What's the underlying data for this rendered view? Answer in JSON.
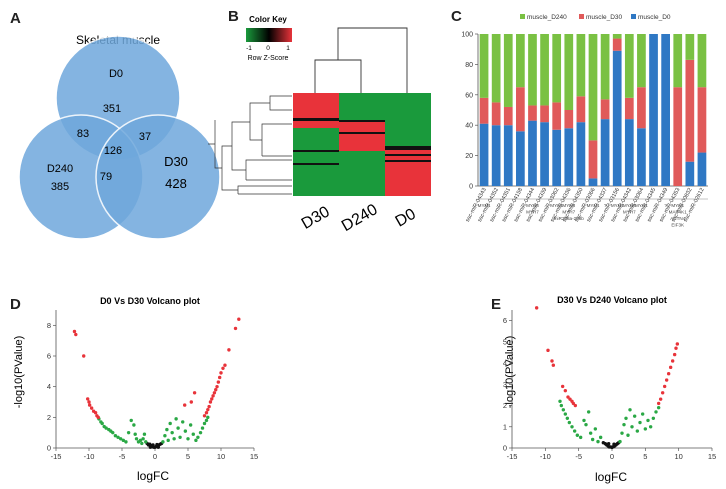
{
  "panel_labels": {
    "a": "A",
    "b": "B",
    "c": "C",
    "d": "D",
    "e": "E"
  },
  "venn": {
    "title": "Skeletal muscle",
    "sets": [
      "D0",
      "D240",
      "D30"
    ],
    "regions": {
      "d0_only": "351",
      "d240_only": "385",
      "d30_only": "428",
      "d0_d240": "83",
      "d0_d30": "37",
      "d240_d30": "79",
      "all": "126"
    },
    "colors": {
      "fill": "#6fa8dc",
      "overlap": "#3f7fc4"
    }
  },
  "heatmap": {
    "color_key_title": "Color Key",
    "color_key_caption": "Row Z-Score",
    "scale_ticks": [
      "-1",
      "0",
      "1"
    ],
    "columns": [
      "D30",
      "D240",
      "D0"
    ],
    "colors": {
      "low": "#1a9a3c",
      "mid": "#000000",
      "high": "#e8333a"
    }
  },
  "chart_data": [
    {
      "panel": "C",
      "type": "bar",
      "stacked": true,
      "legend": [
        "muscle_D240",
        "muscle_D30",
        "muscle_D0"
      ],
      "colors": [
        "#7ac143",
        "#e05a5a",
        "#2f78c4"
      ],
      "ylim": [
        0,
        100
      ],
      "yticks": [
        "0",
        "20",
        "40",
        "60",
        "80",
        "100"
      ],
      "categories": [
        "ssc-miR-04343",
        "ssc-miR-04352",
        "ssc-miR-04351",
        "ssc-miR-04158",
        "ssc-miR-04344",
        "ssc-miR-04339",
        "ssc-miR-03062",
        "ssc-miR-04336",
        "ssc-miR-04350",
        "ssc-miR-03066",
        "ssc-miR-04337",
        "ssc-miR-03156",
        "ssc-miR-04342",
        "ssc-miR-03064",
        "ssc-miR-04345",
        "ssc-miR-04349",
        "ssc-miR-04353",
        "ssc-miR-00832",
        "ssc-miR-02612"
      ],
      "series": [
        {
          "name": "muscle_D0",
          "values": [
            41,
            40,
            40,
            36,
            43,
            42,
            37,
            38,
            42,
            5,
            44,
            89,
            44,
            38,
            100,
            100,
            0,
            16,
            22
          ]
        },
        {
          "name": "muscle_D30",
          "values": [
            17,
            15,
            12,
            29,
            10,
            11,
            18,
            12,
            17,
            25,
            13,
            8,
            14,
            27,
            0,
            0,
            65,
            67,
            43
          ]
        },
        {
          "name": "muscle_D240",
          "values": [
            42,
            45,
            48,
            35,
            47,
            47,
            45,
            50,
            41,
            70,
            43,
            3,
            42,
            35,
            0,
            0,
            35,
            17,
            35
          ]
        }
      ],
      "targets": [
        {
          "col": 0,
          "lines": [
            "MYH1"
          ]
        },
        {
          "col": 4,
          "lines": [
            "MYH6",
            "MYH7"
          ]
        },
        {
          "col": 6,
          "lines": [
            "MYH1"
          ]
        },
        {
          "col": 7,
          "lines": [
            "MYH6",
            "MYH7",
            "miR208a-208b"
          ]
        },
        {
          "col": 9,
          "lines": [
            "MYH1"
          ]
        },
        {
          "col": 10,
          "lines": [
            "?"
          ]
        },
        {
          "col": 11,
          "lines": [
            "MYH1"
          ]
        },
        {
          "col": 12,
          "lines": [
            "MYH6",
            "MYH7"
          ]
        },
        {
          "col": 13,
          "lines": [
            "MYH1"
          ]
        },
        {
          "col": 15,
          "lines": [
            "?"
          ]
        },
        {
          "col": 16,
          "lines": [
            "MYH1",
            "MAP4K1",
            "ACTN4",
            "EIF3K"
          ]
        }
      ]
    },
    {
      "panel": "D",
      "type": "scatter",
      "title": "D0 Vs D30 Volcano plot",
      "xlabel": "logFC",
      "ylabel": "-log10(PValue)",
      "xlim": [
        -15,
        15
      ],
      "ylim": [
        0,
        9
      ],
      "xticks": [
        -15,
        -10,
        -5,
        0,
        5,
        10,
        15
      ],
      "yticks": [
        0,
        2,
        4,
        6,
        8
      ],
      "colors": {
        "up": "#e8333a",
        "mid": "#2aa845",
        "ns": "#111111"
      },
      "points_red": [
        [
          -12.2,
          7.6
        ],
        [
          -12.0,
          7.4
        ],
        [
          -10.8,
          6.0
        ],
        [
          -10.2,
          3.2
        ],
        [
          -10.0,
          3.0
        ],
        [
          -9.9,
          2.8
        ],
        [
          -9.6,
          2.6
        ],
        [
          -9.3,
          2.4
        ],
        [
          -9.0,
          2.3
        ],
        [
          -8.8,
          2.1
        ],
        [
          -8.6,
          2.0
        ],
        [
          4.5,
          2.8
        ],
        [
          5.5,
          3.0
        ],
        [
          6.0,
          3.6
        ],
        [
          7.5,
          2.1
        ],
        [
          7.8,
          2.3
        ],
        [
          8.0,
          2.5
        ],
        [
          8.2,
          2.7
        ],
        [
          8.4,
          3.0
        ],
        [
          8.6,
          3.2
        ],
        [
          8.8,
          3.4
        ],
        [
          9.0,
          3.6
        ],
        [
          9.2,
          3.8
        ],
        [
          9.4,
          4.0
        ],
        [
          9.6,
          4.3
        ],
        [
          9.8,
          4.6
        ],
        [
          10.0,
          4.9
        ],
        [
          10.3,
          5.2
        ],
        [
          10.6,
          5.4
        ],
        [
          11.2,
          6.4
        ],
        [
          12.2,
          7.8
        ],
        [
          12.7,
          8.4
        ]
      ],
      "points_green": [
        [
          -8.5,
          1.9
        ],
        [
          -8.2,
          1.7
        ],
        [
          -8.0,
          1.6
        ],
        [
          -7.7,
          1.4
        ],
        [
          -7.4,
          1.3
        ],
        [
          -7.0,
          1.2
        ],
        [
          -6.7,
          1.1
        ],
        [
          -6.4,
          1.0
        ],
        [
          -6.0,
          0.8
        ],
        [
          -5.6,
          0.7
        ],
        [
          -5.2,
          0.6
        ],
        [
          -4.8,
          0.5
        ],
        [
          -4.4,
          0.4
        ],
        [
          -4.0,
          1.0
        ],
        [
          -3.6,
          1.8
        ],
        [
          -3.2,
          1.5
        ],
        [
          -3.0,
          0.9
        ],
        [
          -2.8,
          0.6
        ],
        [
          -2.5,
          0.4
        ],
        [
          -2.2,
          0.5
        ],
        [
          -2.0,
          0.3
        ],
        [
          -1.8,
          0.6
        ],
        [
          -1.6,
          0.9
        ],
        [
          -1.4,
          0.4
        ],
        [
          1.2,
          0.4
        ],
        [
          1.5,
          0.8
        ],
        [
          1.8,
          1.2
        ],
        [
          2.0,
          0.5
        ],
        [
          2.3,
          1.6
        ],
        [
          2.6,
          1.0
        ],
        [
          2.9,
          0.6
        ],
        [
          3.2,
          1.9
        ],
        [
          3.5,
          1.3
        ],
        [
          3.8,
          0.7
        ],
        [
          4.2,
          1.7
        ],
        [
          4.6,
          1.1
        ],
        [
          5.0,
          0.6
        ],
        [
          5.4,
          1.5
        ],
        [
          5.8,
          0.9
        ],
        [
          6.2,
          0.5
        ],
        [
          6.5,
          0.7
        ],
        [
          6.9,
          1.0
        ],
        [
          7.2,
          1.3
        ],
        [
          7.5,
          1.6
        ],
        [
          7.8,
          1.8
        ],
        [
          8.0,
          2.0
        ]
      ],
      "points_black": [
        [
          -1.2,
          0.3
        ],
        [
          -1.0,
          0.2
        ],
        [
          -0.8,
          0.25
        ],
        [
          -0.6,
          0.15
        ],
        [
          -0.4,
          0.1
        ],
        [
          -0.2,
          0.05
        ],
        [
          0.0,
          0.05
        ],
        [
          0.2,
          0.1
        ],
        [
          0.4,
          0.15
        ],
        [
          0.6,
          0.2
        ],
        [
          0.8,
          0.25
        ],
        [
          1.0,
          0.3
        ],
        [
          -0.7,
          0.05
        ],
        [
          0.5,
          0.05
        ],
        [
          -0.3,
          0.2
        ],
        [
          0.3,
          0.22
        ]
      ]
    },
    {
      "panel": "E",
      "type": "scatter",
      "title": "D30 Vs D240 Volcano plot",
      "xlabel": "logFC",
      "ylabel": "-log10(PValue)",
      "xlim": [
        -15,
        15
      ],
      "ylim": [
        0,
        6.5
      ],
      "xticks": [
        -15,
        -10,
        -5,
        0,
        5,
        10,
        15
      ],
      "yticks": [
        0,
        1,
        2,
        3,
        4,
        5,
        6
      ],
      "colors": {
        "up": "#e8333a",
        "mid": "#2aa845",
        "ns": "#111111"
      },
      "points_red": [
        [
          -11.3,
          6.6
        ],
        [
          -9.6,
          4.6
        ],
        [
          -9.0,
          4.1
        ],
        [
          -8.8,
          3.9
        ],
        [
          -7.4,
          2.9
        ],
        [
          -7.0,
          2.7
        ],
        [
          -6.6,
          2.4
        ],
        [
          -6.3,
          2.3
        ],
        [
          -6.0,
          2.2
        ],
        [
          -5.8,
          2.1
        ],
        [
          -5.5,
          2.0
        ],
        [
          7.0,
          2.1
        ],
        [
          7.3,
          2.3
        ],
        [
          7.6,
          2.6
        ],
        [
          7.9,
          2.9
        ],
        [
          8.2,
          3.2
        ],
        [
          8.5,
          3.5
        ],
        [
          8.8,
          3.8
        ],
        [
          9.1,
          4.1
        ],
        [
          9.4,
          4.4
        ],
        [
          9.6,
          4.7
        ],
        [
          9.8,
          4.9
        ]
      ],
      "points_green": [
        [
          -7.8,
          2.2
        ],
        [
          -7.6,
          2.0
        ],
        [
          -7.3,
          1.8
        ],
        [
          -7.0,
          1.6
        ],
        [
          -6.7,
          1.4
        ],
        [
          -6.4,
          1.2
        ],
        [
          -6.0,
          1.0
        ],
        [
          -5.6,
          0.8
        ],
        [
          -5.2,
          0.6
        ],
        [
          -4.7,
          0.5
        ],
        [
          -4.2,
          1.3
        ],
        [
          -3.9,
          1.1
        ],
        [
          -3.5,
          1.7
        ],
        [
          -3.2,
          0.7
        ],
        [
          -2.9,
          0.4
        ],
        [
          -2.5,
          0.9
        ],
        [
          -2.1,
          0.3
        ],
        [
          -1.7,
          0.5
        ],
        [
          1.2,
          0.3
        ],
        [
          1.5,
          0.7
        ],
        [
          1.8,
          1.1
        ],
        [
          2.1,
          1.4
        ],
        [
          2.4,
          0.6
        ],
        [
          2.7,
          1.8
        ],
        [
          3.0,
          1.0
        ],
        [
          3.4,
          1.5
        ],
        [
          3.8,
          0.8
        ],
        [
          4.2,
          1.2
        ],
        [
          4.6,
          1.6
        ],
        [
          5.0,
          0.9
        ],
        [
          5.4,
          1.3
        ],
        [
          5.8,
          1.0
        ],
        [
          6.2,
          1.4
        ],
        [
          6.6,
          1.7
        ],
        [
          7.0,
          1.9
        ]
      ],
      "points_black": [
        [
          -1.3,
          0.25
        ],
        [
          -1.0,
          0.2
        ],
        [
          -0.8,
          0.15
        ],
        [
          -0.6,
          0.1
        ],
        [
          -0.4,
          0.05
        ],
        [
          -0.2,
          0.05
        ],
        [
          0.0,
          0.03
        ],
        [
          0.2,
          0.06
        ],
        [
          0.4,
          0.1
        ],
        [
          0.6,
          0.15
        ],
        [
          0.8,
          0.2
        ],
        [
          1.0,
          0.25
        ],
        [
          -0.5,
          0.2
        ],
        [
          0.3,
          0.18
        ]
      ]
    }
  ]
}
